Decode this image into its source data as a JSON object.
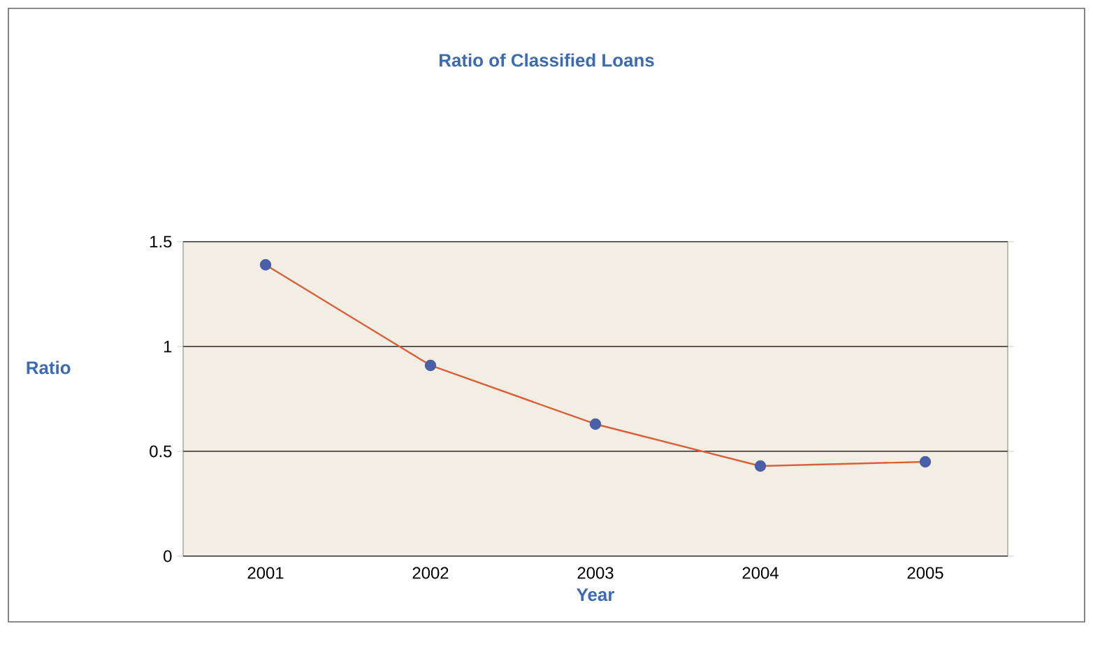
{
  "chart_data": {
    "type": "line",
    "title": "Ratio of Classified Loans",
    "xlabel": "Year",
    "ylabel": "Ratio",
    "categories": [
      "2001",
      "2002",
      "2003",
      "2004",
      "2005"
    ],
    "series": [
      {
        "color": "#d9603b",
        "values": [
          1.39,
          0.91,
          0.63,
          0.43,
          0.45
        ]
      }
    ],
    "ylim": [
      0,
      1.5
    ],
    "yticks": [
      0,
      0.5,
      1,
      1.5
    ],
    "grid": "y",
    "marker": "circle",
    "line_style": "solid"
  }
}
